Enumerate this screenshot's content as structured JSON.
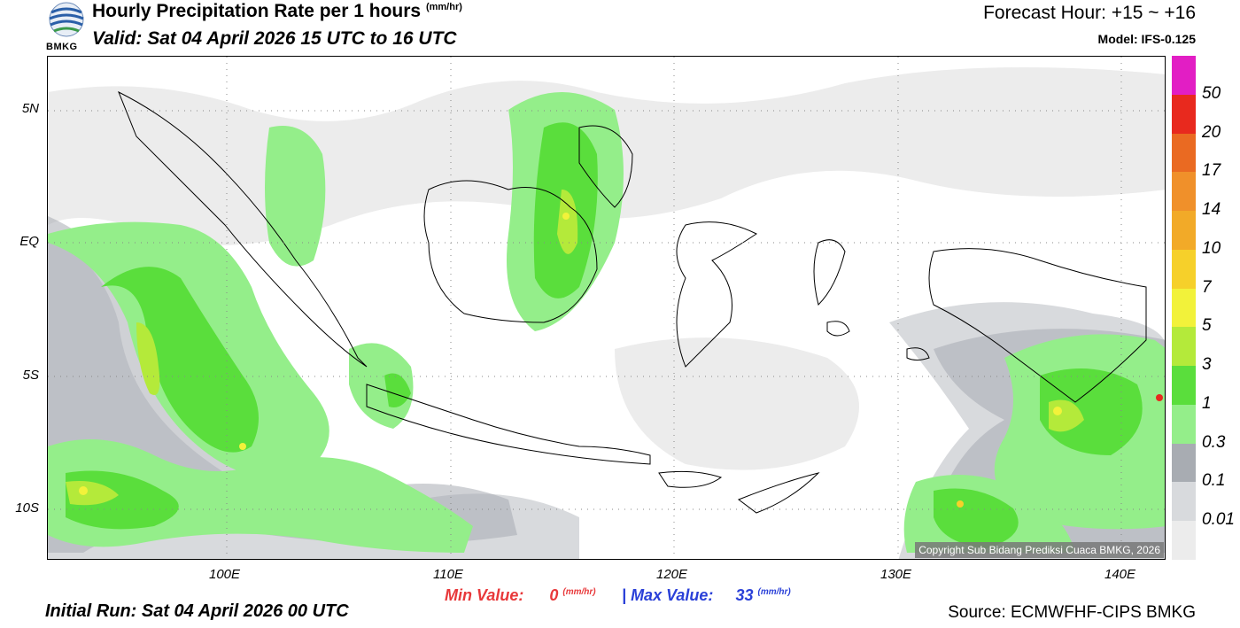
{
  "header": {
    "title": "Hourly Precipitation Rate per 1 hours",
    "title_unit": "(mm/hr)",
    "valid": "Valid: Sat 04 April 2026 15 UTC to 16 UTC",
    "forecast_hour": "Forecast Hour: +15 ~ +16",
    "model": "Model: IFS-0.125",
    "logo_text": "BMKG"
  },
  "map": {
    "y_labels": [
      "5N",
      "EQ",
      "5S",
      "10S"
    ],
    "x_labels": [
      "100E",
      "110E",
      "120E",
      "130E",
      "140E"
    ],
    "copyright": "Copyright Sub Bidang Prediksi Cuaca BMKG, 2026"
  },
  "legend": {
    "labels": [
      "50",
      "20",
      "17",
      "14",
      "10",
      "7",
      "5",
      "3",
      "1",
      "0.3",
      "0.1",
      "0.01"
    ],
    "colors": [
      "#e21ec4",
      "#e8291e",
      "#ea6a22",
      "#f0902a",
      "#f2aa28",
      "#f6d02a",
      "#f2f23a",
      "#b4ea3a",
      "#5ade3c",
      "#94ee8a",
      "#a8acb2",
      "#d8dadd",
      "#ececec"
    ]
  },
  "footer": {
    "min_label": "Min Value:",
    "min_value": "0",
    "separator": "|",
    "max_label": "Max Value:",
    "max_value": "33",
    "unit": "(mm/hr)",
    "initial_run": "Initial Run: Sat 04 April 2026 00 UTC",
    "source": "Source: ECMWFHF-CIPS BMKG"
  }
}
